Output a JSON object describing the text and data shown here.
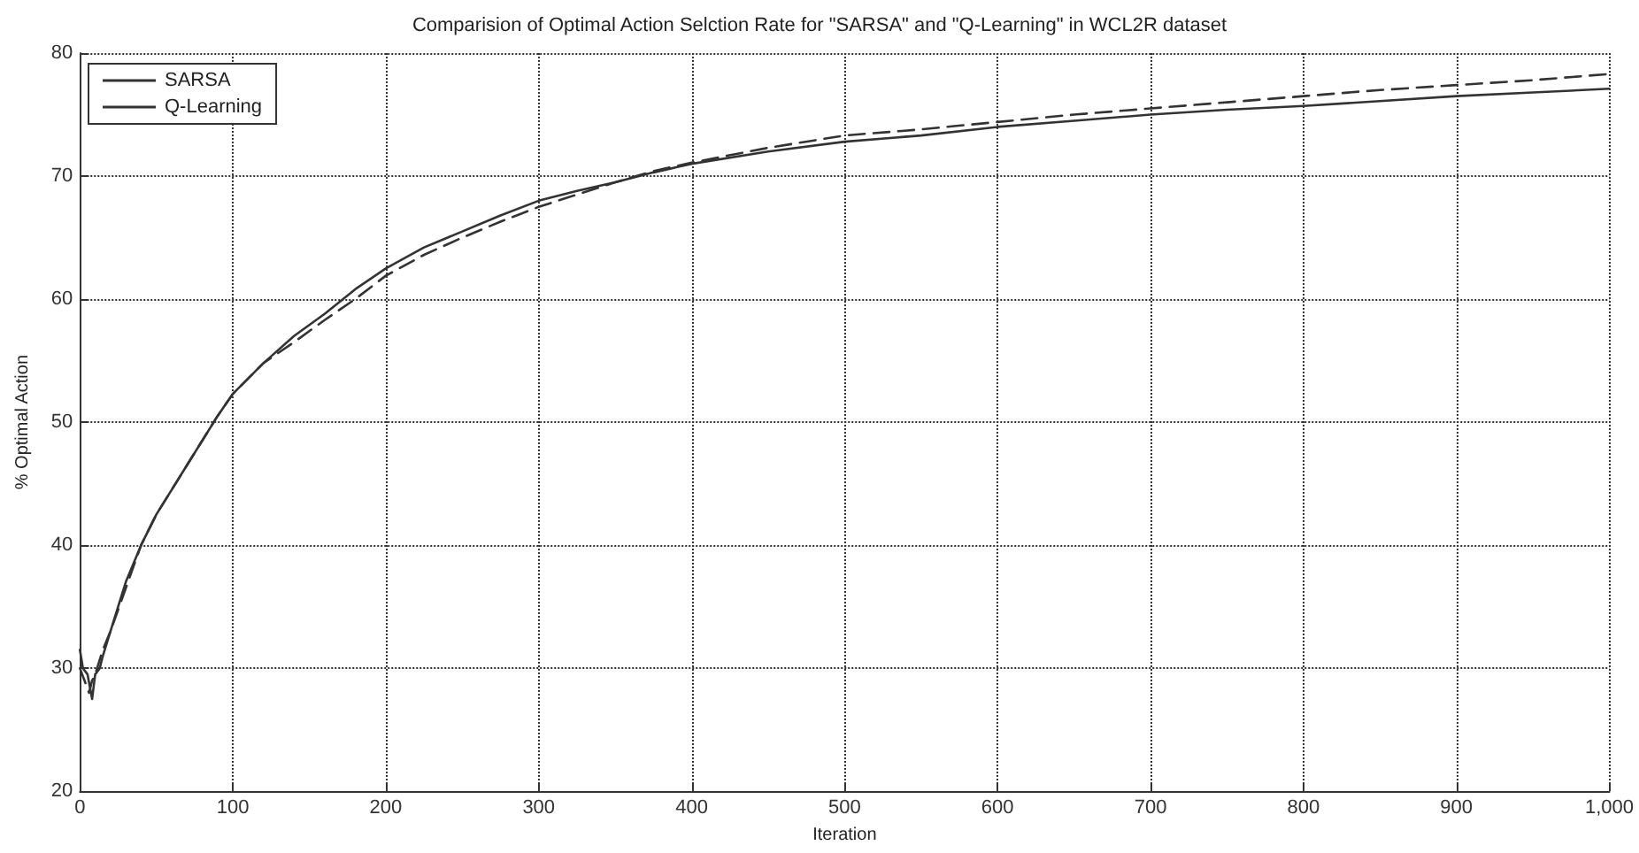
{
  "chart_data": {
    "type": "line",
    "title": "Comparision of Optimal Action Selction Rate for \"SARSA\" and \"Q-Learning\" in WCL2R dataset",
    "xlabel": "Iteration",
    "ylabel": "% Optimal Action",
    "xlim": [
      0,
      1000
    ],
    "xticks": [
      0,
      100,
      200,
      300,
      400,
      500,
      600,
      700,
      800,
      900,
      {
        "value": 1000,
        "label": "1,000"
      }
    ],
    "ylim": [
      20,
      80
    ],
    "yticks": [
      20,
      30,
      40,
      50,
      60,
      70,
      80
    ],
    "grid": true,
    "legend": "top left",
    "marker": "none",
    "series": [
      {
        "name": "SARSA",
        "color": "#333333",
        "line_style": "solid",
        "x": [
          0,
          2,
          5,
          8,
          10,
          13,
          15,
          20,
          30,
          40,
          50,
          60,
          70,
          80,
          90,
          100,
          120,
          140,
          160,
          180,
          200,
          225,
          250,
          275,
          300,
          325,
          350,
          375,
          400,
          450,
          500,
          550,
          600,
          650,
          700,
          750,
          800,
          850,
          900,
          950,
          1000
        ],
        "values": [
          31.5,
          30,
          29.5,
          27.5,
          29.5,
          30,
          31,
          33,
          37,
          40,
          42.5,
          44.5,
          46.5,
          48.5,
          50.5,
          52.3,
          54.8,
          57,
          58.8,
          60.8,
          62.5,
          64.2,
          65.5,
          66.8,
          68,
          68.8,
          69.5,
          70.3,
          71,
          72,
          72.8,
          73.3,
          74,
          74.5,
          75,
          75.4,
          75.7,
          76.1,
          76.5,
          76.8,
          77.1
        ]
      },
      {
        "name": "Q-Learning",
        "color": "#333333",
        "line_style": "dashed",
        "x": [
          0,
          3,
          6,
          8,
          10,
          15,
          20,
          30,
          40,
          50,
          60,
          70,
          80,
          90,
          100,
          120,
          140,
          160,
          180,
          200,
          225,
          250,
          275,
          300,
          325,
          350,
          375,
          400,
          450,
          500,
          550,
          600,
          650,
          700,
          750,
          800,
          850,
          900,
          950,
          1000
        ],
        "values": [
          30,
          29,
          28,
          29,
          29.5,
          31.5,
          33,
          36.5,
          40,
          42.5,
          44.5,
          46.5,
          48.5,
          50.5,
          52.3,
          54.8,
          56.5,
          58.3,
          60,
          61.9,
          63.6,
          65,
          66.3,
          67.5,
          68.5,
          69.5,
          70.4,
          71.1,
          72.3,
          73.3,
          73.8,
          74.4,
          75,
          75.5,
          76,
          76.5,
          77,
          77.4,
          77.8,
          78.3
        ]
      }
    ]
  }
}
